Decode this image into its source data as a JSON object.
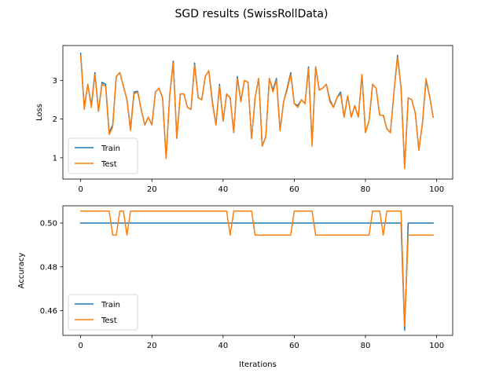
{
  "figure": {
    "title": "SGD results (SwissRollData)"
  },
  "colors": {
    "train": "#1f77b4",
    "test": "#ff7f0e",
    "axis": "#000000"
  },
  "chart_data": [
    {
      "type": "line",
      "title": "",
      "xlabel": "",
      "ylabel": "Loss",
      "xlim": [
        -5,
        104.5
      ],
      "ylim": [
        0.45,
        3.9
      ],
      "xticks": [
        0,
        20,
        40,
        60,
        80,
        100
      ],
      "xtick_labels": [
        "0",
        "20",
        "40",
        "60",
        "80",
        "100"
      ],
      "yticks": [
        1,
        2,
        3
      ],
      "ytick_labels": [
        "1",
        "2",
        "3"
      ],
      "legend": {
        "placement": "lower-left",
        "entries": [
          "Train",
          "Test"
        ]
      },
      "series": [
        {
          "name": "Train",
          "x_start": 0,
          "values": [
            3.7,
            2.3,
            2.9,
            2.35,
            3.2,
            2.2,
            2.95,
            2.9,
            1.65,
            1.85,
            3.1,
            3.2,
            2.85,
            2.5,
            1.75,
            2.7,
            2.72,
            2.25,
            1.85,
            2.05,
            1.85,
            2.7,
            2.8,
            2.55,
            1.0,
            2.6,
            3.5,
            1.5,
            2.65,
            2.65,
            2.3,
            2.25,
            3.45,
            2.55,
            2.5,
            3.1,
            3.25,
            2.45,
            1.85,
            2.9,
            1.95,
            2.65,
            2.55,
            1.65,
            3.1,
            2.45,
            3.0,
            2.95,
            1.5,
            2.55,
            3.05,
            1.3,
            1.55,
            3.05,
            2.75,
            3.05,
            1.7,
            2.45,
            2.8,
            3.2,
            2.4,
            2.35,
            2.5,
            2.4,
            3.35,
            1.35,
            3.35,
            2.75,
            2.8,
            2.9,
            2.5,
            2.3,
            2.55,
            2.7,
            2.05,
            2.6,
            2.05,
            2.35,
            2.05,
            3.15,
            1.65,
            1.95,
            2.9,
            2.8,
            2.1,
            2.1,
            1.75,
            1.65,
            2.7,
            3.65,
            2.8,
            0.75,
            2.55,
            2.5,
            2.15,
            1.2,
            1.9,
            3.0,
            2.6,
            2.05
          ]
        },
        {
          "name": "Test",
          "x_start": 0,
          "values": [
            3.65,
            2.25,
            2.9,
            2.3,
            3.15,
            2.2,
            2.9,
            2.85,
            1.6,
            1.8,
            3.1,
            3.2,
            2.85,
            2.5,
            1.7,
            2.65,
            2.7,
            2.25,
            1.85,
            2.05,
            1.85,
            2.7,
            2.8,
            2.55,
            0.98,
            2.6,
            3.45,
            1.5,
            2.65,
            2.65,
            2.3,
            2.25,
            3.4,
            2.55,
            2.5,
            3.1,
            3.25,
            2.4,
            1.85,
            2.85,
            1.95,
            2.65,
            2.55,
            1.65,
            3.05,
            2.45,
            3.0,
            2.95,
            1.5,
            2.55,
            3.05,
            1.3,
            1.55,
            3.05,
            2.7,
            3.0,
            1.7,
            2.45,
            2.75,
            3.15,
            2.4,
            2.3,
            2.5,
            2.4,
            3.3,
            1.3,
            3.35,
            2.75,
            2.8,
            2.9,
            2.45,
            2.3,
            2.55,
            2.65,
            2.05,
            2.6,
            2.05,
            2.35,
            2.05,
            3.15,
            1.65,
            1.95,
            2.9,
            2.8,
            2.1,
            2.1,
            1.75,
            1.65,
            2.7,
            3.6,
            2.8,
            0.72,
            2.55,
            2.5,
            2.15,
            1.2,
            1.9,
            3.05,
            2.6,
            2.05
          ]
        }
      ]
    },
    {
      "type": "line",
      "title": "",
      "xlabel": "Iterations",
      "ylabel": "Accuracy",
      "xlim": [
        -5,
        104.5
      ],
      "ylim": [
        0.4487,
        0.5079
      ],
      "xticks": [
        0,
        20,
        40,
        60,
        80,
        100
      ],
      "xtick_labels": [
        "0",
        "20",
        "40",
        "60",
        "80",
        "100"
      ],
      "yticks": [
        0.46,
        0.48,
        0.5
      ],
      "ytick_labels": [
        "0.46",
        "0.48",
        "0.50"
      ],
      "legend": {
        "placement": "lower-left",
        "entries": [
          "Train",
          "Test"
        ]
      },
      "series": [
        {
          "name": "Train",
          "x_start": 0,
          "values": [
            0.5,
            0.5,
            0.5,
            0.5,
            0.5,
            0.5,
            0.5,
            0.5,
            0.5,
            0.5,
            0.5,
            0.5,
            0.5,
            0.5,
            0.5,
            0.5,
            0.5,
            0.5,
            0.5,
            0.5,
            0.5,
            0.5,
            0.5,
            0.5,
            0.5,
            0.5,
            0.5,
            0.5,
            0.5,
            0.5,
            0.5,
            0.5,
            0.5,
            0.5,
            0.5,
            0.5,
            0.5,
            0.5,
            0.5,
            0.5,
            0.5,
            0.5,
            0.5,
            0.5,
            0.5,
            0.5,
            0.5,
            0.5,
            0.5,
            0.5,
            0.5,
            0.5,
            0.5,
            0.5,
            0.5,
            0.5,
            0.5,
            0.5,
            0.5,
            0.5,
            0.5,
            0.5,
            0.5,
            0.5,
            0.5,
            0.5,
            0.5,
            0.5,
            0.5,
            0.5,
            0.5,
            0.5,
            0.5,
            0.5,
            0.5,
            0.5,
            0.5,
            0.5,
            0.5,
            0.5,
            0.5,
            0.5,
            0.5,
            0.5,
            0.5,
            0.5,
            0.5,
            0.5,
            0.5,
            0.5,
            0.5,
            0.451,
            0.5,
            0.5,
            0.5,
            0.5,
            0.5,
            0.5,
            0.5,
            0.5
          ]
        },
        {
          "name": "Test",
          "x_start": 0,
          "values": [
            0.5055,
            0.5055,
            0.5055,
            0.5055,
            0.5055,
            0.5055,
            0.5055,
            0.5055,
            0.5055,
            0.4945,
            0.4945,
            0.5055,
            0.5055,
            0.4945,
            0.5055,
            0.5055,
            0.5055,
            0.5055,
            0.5055,
            0.5055,
            0.5055,
            0.5055,
            0.5055,
            0.5055,
            0.5055,
            0.5055,
            0.5055,
            0.5055,
            0.5055,
            0.5055,
            0.5055,
            0.5055,
            0.5055,
            0.5055,
            0.5055,
            0.5055,
            0.5055,
            0.5055,
            0.5055,
            0.5055,
            0.5055,
            0.5055,
            0.4945,
            0.5055,
            0.5055,
            0.5055,
            0.5055,
            0.5055,
            0.5055,
            0.4945,
            0.4945,
            0.4945,
            0.4945,
            0.4945,
            0.4945,
            0.4945,
            0.4945,
            0.4945,
            0.4945,
            0.4945,
            0.5055,
            0.5055,
            0.5055,
            0.5055,
            0.5055,
            0.5055,
            0.4945,
            0.4945,
            0.4945,
            0.4945,
            0.4945,
            0.4945,
            0.4945,
            0.4945,
            0.4945,
            0.4945,
            0.4945,
            0.4945,
            0.4945,
            0.4945,
            0.4945,
            0.4945,
            0.5055,
            0.5055,
            0.5055,
            0.4945,
            0.5055,
            0.5055,
            0.5055,
            0.5055,
            0.5055,
            0.453,
            0.4945,
            0.4945,
            0.4945,
            0.4945,
            0.4945,
            0.4945,
            0.4945,
            0.4945
          ]
        }
      ]
    }
  ]
}
